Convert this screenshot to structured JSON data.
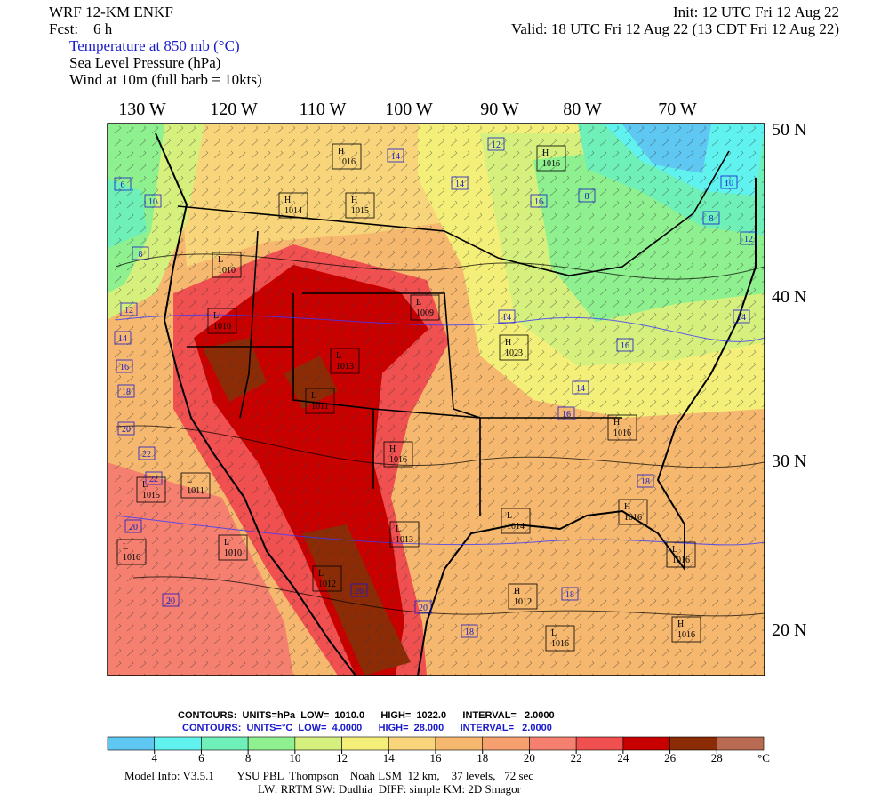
{
  "header": {
    "model": "WRF 12-KM ENKF",
    "forecast": "Fcst:    6 h",
    "init": "Init: 12 UTC Fri 12 Aug 22",
    "valid": "Valid: 18 UTC Fri 12 Aug 22 (13 CDT Fri 12 Aug 22)",
    "fields": [
      "Temperature at 850 mb (°C)",
      "Sea Level Pressure (hPa)",
      "Wind at 10m (full barb = 10kts)"
    ]
  },
  "map": {
    "longitudes": [
      "130 W",
      "120 W",
      "110 W",
      "100 W",
      "90 W",
      "80 W",
      "70 W"
    ],
    "latitudes": [
      "50 N",
      "40 N",
      "30 N",
      "20 N"
    ],
    "pressure_centers": [
      {
        "kind": "H",
        "value": "1016"
      },
      {
        "kind": "H",
        "value": "1014"
      },
      {
        "kind": "H",
        "value": "1015"
      },
      {
        "kind": "H",
        "value": "1016"
      },
      {
        "kind": "L",
        "value": "1010"
      },
      {
        "kind": "L",
        "value": "1009"
      },
      {
        "kind": "L",
        "value": "1013"
      },
      {
        "kind": "L",
        "value": "1011"
      },
      {
        "kind": "H",
        "value": "1016"
      },
      {
        "kind": "H",
        "value": "1023"
      },
      {
        "kind": "H",
        "value": "1016"
      },
      {
        "kind": "L",
        "value": "1011"
      },
      {
        "kind": "L",
        "value": "1015"
      },
      {
        "kind": "L",
        "value": "1016"
      },
      {
        "kind": "L",
        "value": "1010"
      },
      {
        "kind": "L",
        "value": "1013"
      },
      {
        "kind": "L",
        "value": "1012"
      },
      {
        "kind": "H",
        "value": "1012"
      },
      {
        "kind": "L",
        "value": "1016"
      },
      {
        "kind": "H",
        "value": "1016"
      },
      {
        "kind": "L",
        "value": "1016"
      },
      {
        "kind": "L",
        "value": "1014"
      },
      {
        "kind": "H",
        "value": "1016"
      },
      {
        "kind": "L",
        "value": "1010"
      }
    ],
    "temperature_labels": [
      "12",
      "14",
      "14",
      "16",
      "8",
      "6",
      "10",
      "8",
      "12",
      "14",
      "16",
      "18",
      "20",
      "22",
      "22",
      "20",
      "20",
      "14",
      "16",
      "14",
      "16",
      "18",
      "18",
      "20",
      "18",
      "26",
      "14",
      "12",
      "10",
      "8"
    ]
  },
  "footer": {
    "slp_contours": "CONTOURS:  UNITS=hPa  LOW=  1010.0      HIGH=  1022.0      INTERVAL=   2.0000",
    "temp_contours": "CONTOURS:  UNITS=°C  LOW=  4.0000      HIGH=  28.000      INTERVAL=   2.0000",
    "colorbar": {
      "colors": [
        "#5fc8f2",
        "#5ff2ee",
        "#6ef0b8",
        "#8ef08e",
        "#d6f07e",
        "#f4ef78",
        "#f8d57a",
        "#f6b86e",
        "#f6a070",
        "#f68070",
        "#f05050",
        "#c80000",
        "#8c2c06",
        "#b86a52"
      ],
      "ticks": [
        4,
        6,
        8,
        10,
        12,
        14,
        16,
        18,
        20,
        22,
        24,
        26,
        28
      ],
      "unit": "°C"
    },
    "model_info": "Model Info: V3.5.1        YSU PBL  Thompson    Noah LSM  12 km,    37 levels,   72 sec",
    "model_info2": "LW: RRTM SW: Dudhia  DIFF: simple KM: 2D Smagor"
  }
}
